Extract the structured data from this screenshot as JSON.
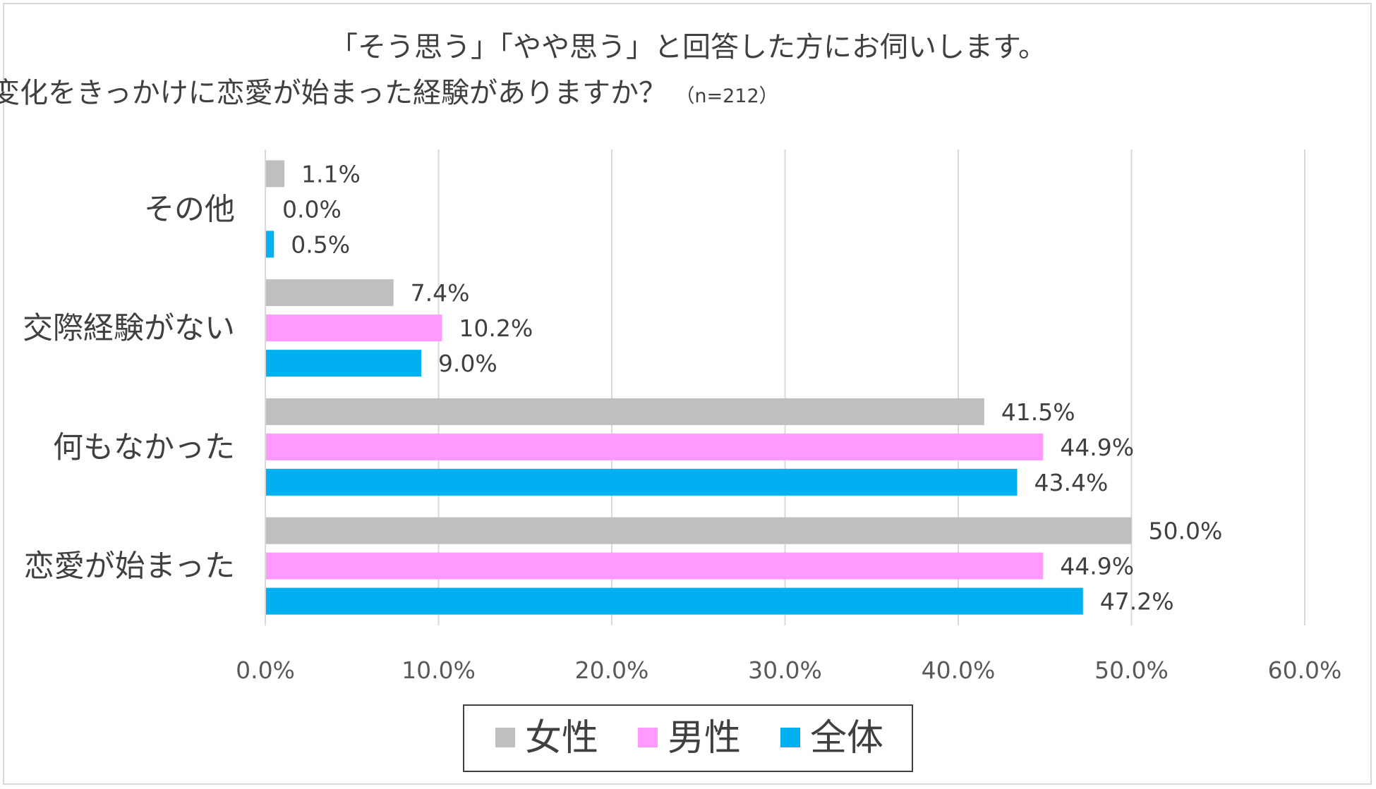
{
  "chart_data": {
    "type": "bar",
    "orientation": "horizontal",
    "title_line1": "「そう思う」「やや思う」と回答した方にお伺いします。",
    "title_line2": "春の環境変化をきっかけに恋愛が始まった経験がありますか？",
    "title_note": "（n=212）",
    "categories": [
      "その他",
      "交際経験がない",
      "何もなかった",
      "恋愛が始まった"
    ],
    "series": [
      {
        "name": "女性",
        "color": "#bfbfbf",
        "values": [
          1.1,
          7.4,
          41.5,
          50.0
        ],
        "labels": [
          "1.1%",
          "7.4%",
          "41.5%",
          "50.0%"
        ]
      },
      {
        "name": "男性",
        "color": "#ff99ff",
        "values": [
          0.0,
          10.2,
          44.9,
          44.9
        ],
        "labels": [
          "0.0%",
          "10.2%",
          "44.9%",
          "44.9%"
        ]
      },
      {
        "name": "全体",
        "color": "#00b0f0",
        "values": [
          0.5,
          9.0,
          43.4,
          47.2
        ],
        "labels": [
          "0.5%",
          "9.0%",
          "43.4%",
          "47.2%"
        ]
      }
    ],
    "xlim": [
      0,
      60
    ],
    "xticks": [
      "0.0%",
      "10.0%",
      "20.0%",
      "30.0%",
      "40.0%",
      "50.0%",
      "60.0%"
    ],
    "grid": "vertical",
    "legend_position": "bottom"
  }
}
